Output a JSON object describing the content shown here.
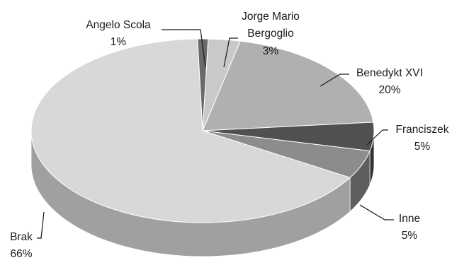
{
  "chart_data": {
    "type": "pie",
    "title": "",
    "style": "3d",
    "slices": [
      {
        "name": "Angelo Scola",
        "pct_label": "1%",
        "value": 1,
        "color": "#6a6a6a",
        "side_color": "#444444"
      },
      {
        "name": "Jorge Mario Bergoglio",
        "name_lines": [
          "Jorge Mario",
          "Bergoglio"
        ],
        "pct_label": "3%",
        "value": 3,
        "color": "#c9c9c9",
        "side_color": "#9a9a9a"
      },
      {
        "name": "Benedykt XVI",
        "pct_label": "20%",
        "value": 20,
        "color": "#b0b0b0",
        "side_color": "#8a8a8a"
      },
      {
        "name": "Franciszek",
        "pct_label": "5%",
        "value": 5,
        "color": "#505050",
        "side_color": "#333333"
      },
      {
        "name": "Inne",
        "pct_label": "5%",
        "value": 5,
        "color": "#8c8c8c",
        "side_color": "#5e5e5e"
      },
      {
        "name": "Brak",
        "pct_label": "66%",
        "value": 66,
        "color": "#d8d8d8",
        "side_color": "#a0a0a0"
      }
    ]
  }
}
